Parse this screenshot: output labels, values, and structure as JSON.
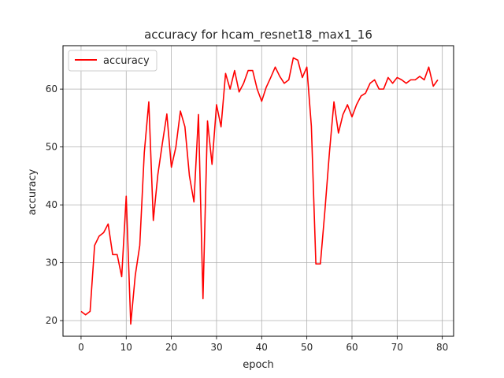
{
  "chart_data": {
    "type": "line",
    "title": "accuracy for hcam_resnet18_max1_16",
    "xlabel": "epoch",
    "ylabel": "accuracy",
    "xlim": [
      -4,
      82.5
    ],
    "ylim": [
      17.3,
      67.5
    ],
    "xticks": [
      0,
      10,
      20,
      30,
      40,
      50,
      60,
      70,
      80
    ],
    "yticks": [
      20,
      30,
      40,
      50,
      60
    ],
    "grid": true,
    "legend_position": "upper-left",
    "series": [
      {
        "name": "accuracy",
        "color": "#ff0000",
        "x": [
          0,
          1,
          2,
          3,
          4,
          5,
          6,
          7,
          8,
          9,
          10,
          11,
          12,
          13,
          14,
          15,
          16,
          17,
          18,
          19,
          20,
          21,
          22,
          23,
          24,
          25,
          26,
          27,
          28,
          29,
          30,
          31,
          32,
          33,
          34,
          35,
          36,
          37,
          38,
          39,
          40,
          41,
          42,
          43,
          44,
          45,
          46,
          47,
          48,
          49,
          50,
          51,
          52,
          53,
          54,
          55,
          56,
          57,
          58,
          59,
          60,
          61,
          62,
          63,
          64,
          65,
          66,
          67,
          68,
          69,
          70,
          71,
          72,
          73,
          74,
          75,
          76,
          77,
          78,
          79
        ],
        "values": [
          21.6,
          21.0,
          21.6,
          33.0,
          34.6,
          35.2,
          36.7,
          31.4,
          31.4,
          27.6,
          41.5,
          19.4,
          27.8,
          33.0,
          49.0,
          57.8,
          37.3,
          45.2,
          50.6,
          55.7,
          46.5,
          50.0,
          56.2,
          53.5,
          45.0,
          40.5,
          55.6,
          23.8,
          54.5,
          47.0,
          57.3,
          53.5,
          62.7,
          60.0,
          63.2,
          59.5,
          61.0,
          63.2,
          63.2,
          60.0,
          57.9,
          60.3,
          62.0,
          63.8,
          62.2,
          61.0,
          61.6,
          65.4,
          65.0,
          62.0,
          63.8,
          53.6,
          29.8,
          29.8,
          39.0,
          49.0,
          57.8,
          52.4,
          55.6,
          57.3,
          55.2,
          57.3,
          58.8,
          59.3,
          61.0,
          61.6,
          60.0,
          60.0,
          62.0,
          61.0,
          62.0,
          61.6,
          61.0,
          61.6,
          61.6,
          62.2,
          61.6,
          63.8,
          60.5,
          61.6
        ]
      }
    ]
  }
}
